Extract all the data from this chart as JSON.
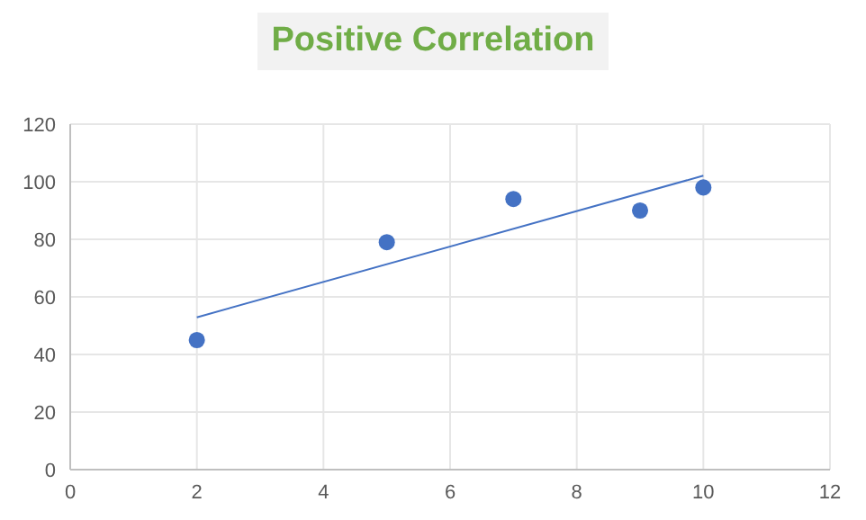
{
  "chart_data": {
    "type": "scatter",
    "title": "Positive Correlation",
    "series": [
      {
        "color": "#4472c4",
        "x": [
          2,
          5,
          7,
          9,
          10
        ],
        "values": [
          45,
          79,
          94,
          90,
          98
        ],
        "marker": "circle"
      },
      {
        "type": "line",
        "color": "#4472c4",
        "x": [
          2,
          10
        ],
        "values": [
          52.9,
          102.1
        ],
        "marker": "none"
      }
    ],
    "xlim": [
      0,
      12
    ],
    "xticks": [
      0,
      2,
      4,
      6,
      8,
      10,
      12
    ],
    "ylim": [
      0,
      120
    ],
    "yticks": [
      0,
      20,
      40,
      60,
      80,
      100,
      120
    ],
    "grid": true
  }
}
